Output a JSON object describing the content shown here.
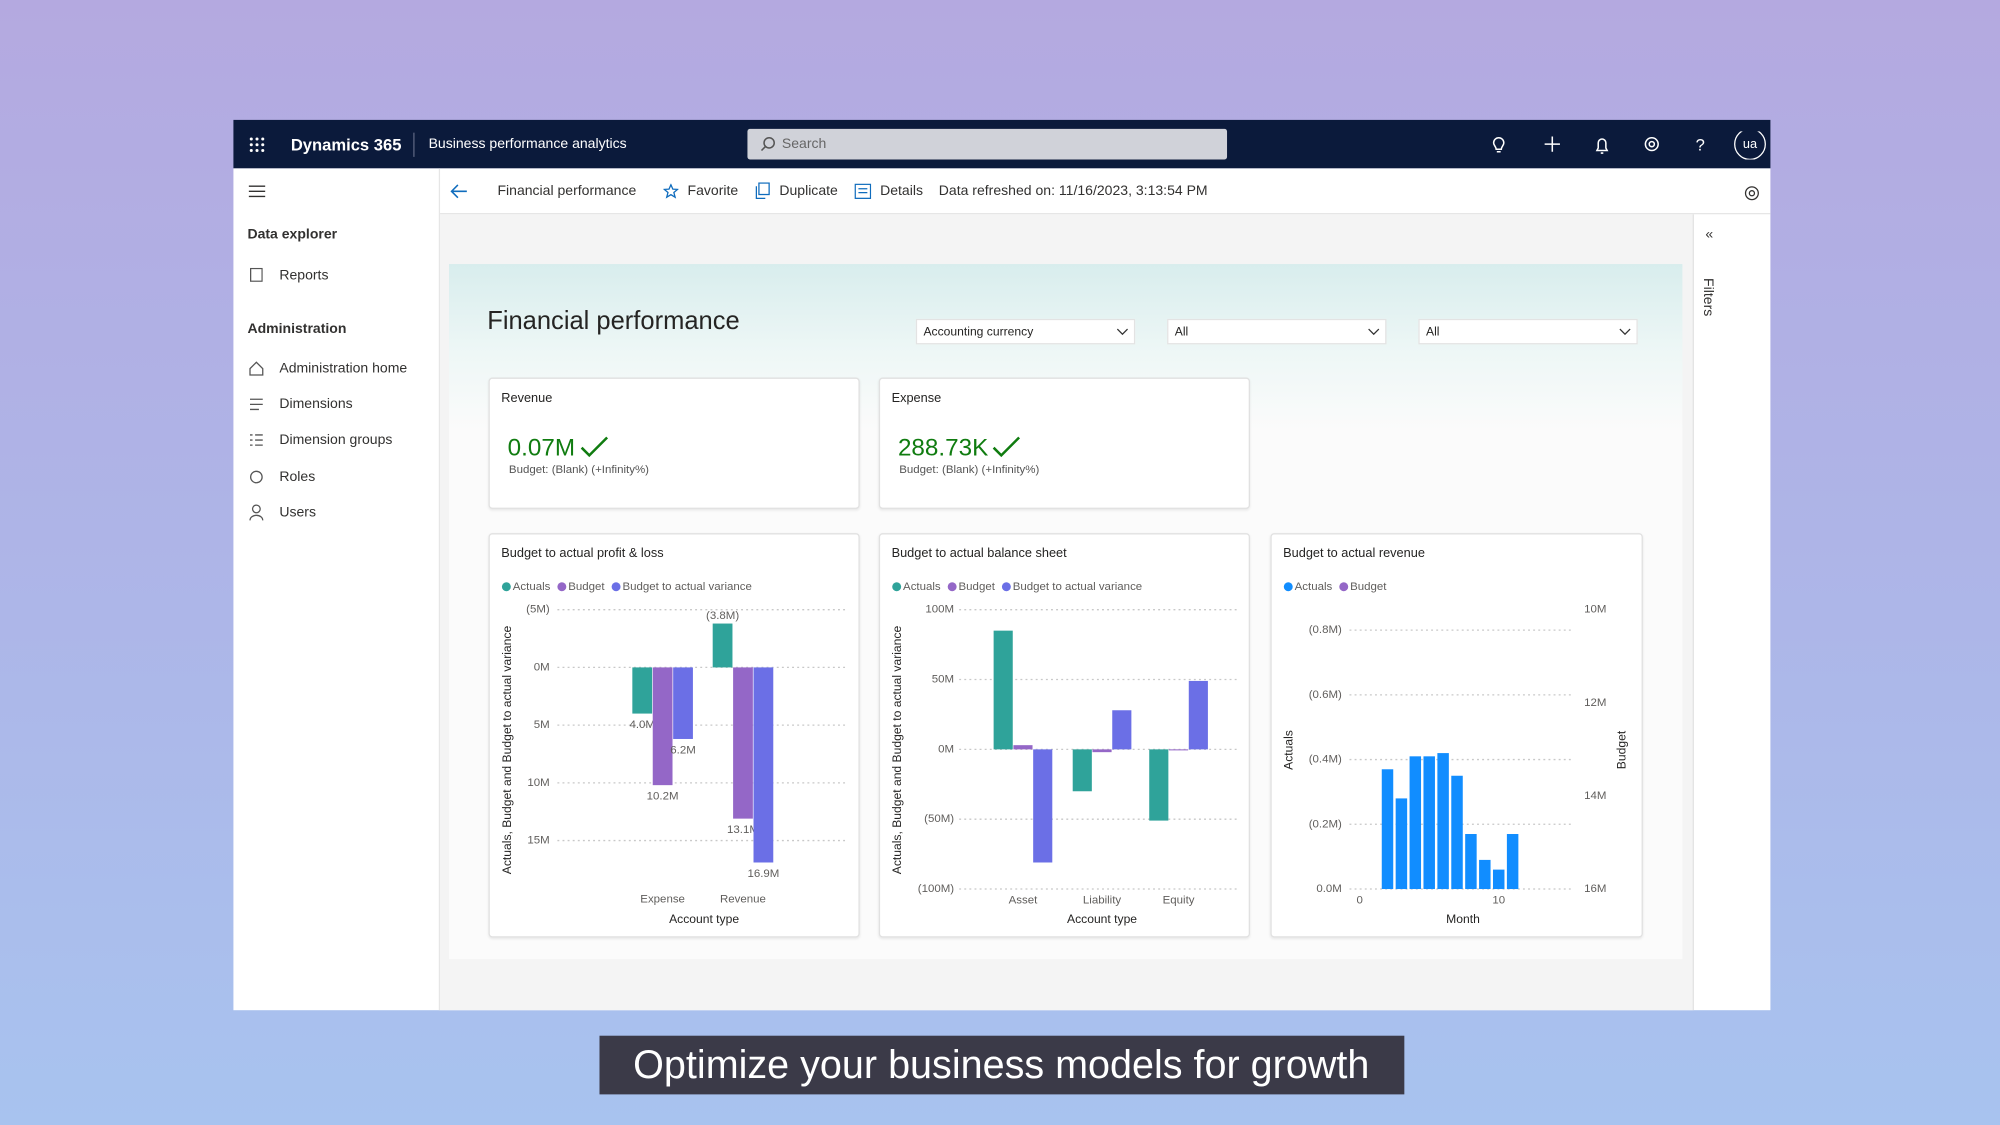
{
  "header": {
    "product": "Dynamics 365",
    "app": "Business performance analytics",
    "search": "Search",
    "avatar": "ua"
  },
  "sidebar": {
    "sections": [
      {
        "title": "Data explorer",
        "items": [
          "Reports"
        ]
      },
      {
        "title": "Administration",
        "items": [
          "Administration home",
          "Dimensions",
          "Dimension groups",
          "Roles",
          "Users"
        ]
      }
    ]
  },
  "toolbar": {
    "page": "Financial performance",
    "actions": [
      "Favorite",
      "Duplicate",
      "Details"
    ],
    "refreshed": "Data refreshed on: 11/16/2023, 3:13:54 PM"
  },
  "report": {
    "title": "Financial performance",
    "filters": [
      "Accounting currency",
      "All",
      "All"
    ],
    "cards": [
      {
        "title": "Revenue",
        "value": "0.07M",
        "subtitle": "Budget: (Blank) (+Infinity%)"
      },
      {
        "title": "Expense",
        "value": "288.73K",
        "subtitle": "Budget: (Blank) (+Infinity%)"
      }
    ]
  },
  "filters_pane": "Filters",
  "caption": "Optimize your business models for growth",
  "chart_data": [
    {
      "type": "bar",
      "title": "Budget to actual profit & loss",
      "y_label": "Actuals, Budget and Budget to actual variance",
      "x_label": "Account type",
      "categories": [
        "Expense",
        "Revenue"
      ],
      "series": [
        {
          "name": "Actuals",
          "color": "#2fa39a",
          "values": [
            4.0,
            -3.8
          ],
          "value_labels": [
            "4.0M",
            "(3.8M)"
          ]
        },
        {
          "name": "Budget",
          "color": "#9467c7",
          "values": [
            10.2,
            13.1
          ],
          "value_labels": [
            "10.2M",
            "13.1M"
          ]
        },
        {
          "name": "Budget to actual variance",
          "color": "#6b6fe6",
          "values": [
            6.2,
            16.9
          ],
          "value_labels": [
            "6.2M",
            "16.9M"
          ]
        }
      ],
      "ylim": [
        15,
        -5
      ],
      "yticks": [
        {
          "value": -5,
          "label": "(5M)"
        },
        {
          "value": 0,
          "label": "0M"
        },
        {
          "value": 5,
          "label": "5M"
        },
        {
          "value": 10,
          "label": "10M"
        },
        {
          "value": 15,
          "label": "15M"
        }
      ],
      "grid": true,
      "legend": "top"
    },
    {
      "type": "bar",
      "title": "Budget to actual balance sheet",
      "y_label": "Actuals, Budget and Budget to actual variance",
      "x_label": "Account type",
      "categories": [
        "Asset",
        "Liability",
        "Equity"
      ],
      "series": [
        {
          "name": "Actuals",
          "color": "#2fa39a",
          "values": [
            85,
            -30,
            -51
          ]
        },
        {
          "name": "Budget",
          "color": "#9467c7",
          "values": [
            3,
            -2,
            0
          ]
        },
        {
          "name": "Budget to actual variance",
          "color": "#6b6fe6",
          "values": [
            -81,
            28,
            49
          ]
        }
      ],
      "ylim": [
        -100,
        100
      ],
      "yticks": [
        {
          "value": 100,
          "label": "100M"
        },
        {
          "value": 50,
          "label": "50M"
        },
        {
          "value": 0,
          "label": "0M"
        },
        {
          "value": -50,
          "label": "(50M)"
        },
        {
          "value": -100,
          "label": "(100M)"
        }
      ],
      "grid": true,
      "legend": "top"
    },
    {
      "type": "bar",
      "title": "Budget to actual revenue",
      "y_label": "Actuals",
      "y2_label": "Budget",
      "x_label": "Month",
      "x": [
        2,
        3,
        4,
        5,
        6,
        7,
        8,
        9,
        10,
        11
      ],
      "series": [
        {
          "name": "Actuals",
          "color": "#118dff",
          "values": [
            -0.37,
            -0.28,
            -0.41,
            -0.41,
            -0.42,
            -0.35,
            -0.17,
            -0.09,
            -0.06,
            -0.17
          ]
        },
        {
          "name": "Budget",
          "color": "#9467c7",
          "axis": "y2",
          "values": [
            null,
            null,
            null,
            null,
            null,
            null,
            null,
            null,
            null,
            null
          ]
        }
      ],
      "xlim": [
        0,
        14
      ],
      "xticks": [
        0,
        10
      ],
      "ylim": [
        0,
        -0.8
      ],
      "yticks": [
        {
          "value": 0,
          "label": "0.0M"
        },
        {
          "value": -0.2,
          "label": "(0.2M)"
        },
        {
          "value": -0.4,
          "label": "(0.4M)"
        },
        {
          "value": -0.6,
          "label": "(0.6M)"
        },
        {
          "value": -0.8,
          "label": "(0.8M)"
        }
      ],
      "y2lim": [
        16,
        10
      ],
      "y2ticks": [
        {
          "value": 10,
          "label": "10M"
        },
        {
          "value": 12,
          "label": "12M"
        },
        {
          "value": 14,
          "label": "14M"
        },
        {
          "value": 16,
          "label": "16M"
        }
      ],
      "grid": true,
      "legend": "top"
    }
  ]
}
